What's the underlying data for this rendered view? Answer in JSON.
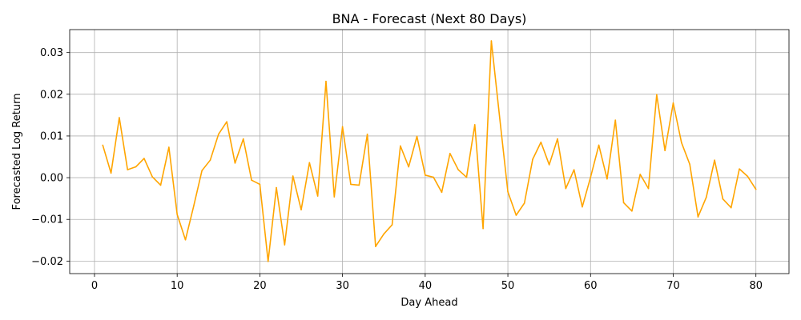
{
  "chart_data": {
    "type": "line",
    "title": "BNA - Forecast (Next 80 Days)",
    "xlabel": "Day Ahead",
    "ylabel": "Forecasted Log Return",
    "xlim": [
      -3.0,
      84.0
    ],
    "ylim": [
      -0.023,
      0.0355
    ],
    "x_ticks": [
      0,
      10,
      20,
      30,
      40,
      50,
      60,
      70,
      80
    ],
    "y_ticks": [
      -0.02,
      -0.01,
      0.0,
      0.01,
      0.02,
      0.03
    ],
    "y_tick_labels": [
      "−0.02",
      "−0.01",
      "0.00",
      "0.01",
      "0.02",
      "0.03"
    ],
    "grid": true,
    "legend": "none",
    "series": [
      {
        "color": "#FFA500",
        "x": [
          1,
          2,
          3,
          4,
          5,
          6,
          7,
          8,
          9,
          10,
          11,
          12,
          13,
          14,
          15,
          16,
          17,
          18,
          19,
          20,
          21,
          22,
          23,
          24,
          25,
          26,
          27,
          28,
          29,
          30,
          31,
          32,
          33,
          34,
          35,
          36,
          37,
          38,
          39,
          40,
          41,
          42,
          43,
          44,
          45,
          46,
          47,
          48,
          49,
          50,
          51,
          52,
          53,
          54,
          55,
          56,
          57,
          58,
          59,
          60,
          61,
          62,
          63,
          64,
          65,
          66,
          67,
          68,
          69,
          70,
          71,
          72,
          73,
          74,
          75,
          76,
          77,
          78,
          79,
          80
        ],
        "values": [
          0.0078,
          0.0011,
          0.0144,
          0.0019,
          0.0026,
          0.0046,
          0.0002,
          -0.0018,
          0.0073,
          -0.0088,
          -0.0149,
          -0.0068,
          0.0017,
          0.0042,
          0.0104,
          0.0134,
          0.0035,
          0.0093,
          -0.0006,
          -0.0016,
          -0.0201,
          -0.0024,
          -0.0161,
          0.0004,
          -0.0077,
          0.0036,
          -0.0044,
          0.0231,
          -0.0046,
          0.0122,
          -0.0016,
          -0.0018,
          0.0104,
          -0.0165,
          -0.0135,
          -0.0113,
          0.0076,
          0.0026,
          0.0099,
          0.0006,
          0.0001,
          -0.0035,
          0.0058,
          0.0019,
          0.0001,
          0.0127,
          -0.0122,
          0.0328,
          0.0145,
          -0.0034,
          -0.009,
          -0.0061,
          0.0044,
          0.0085,
          0.0031,
          0.0093,
          -0.0026,
          0.0019,
          -0.007,
          0.0001,
          0.0078,
          -0.0003,
          0.0138,
          -0.006,
          -0.008,
          0.0008,
          -0.0026,
          0.0199,
          0.0065,
          0.0179,
          0.0084,
          0.0032,
          -0.0094,
          -0.0047,
          0.0042,
          -0.0051,
          -0.0072,
          0.0021,
          0.0003,
          -0.0028
        ]
      }
    ]
  }
}
